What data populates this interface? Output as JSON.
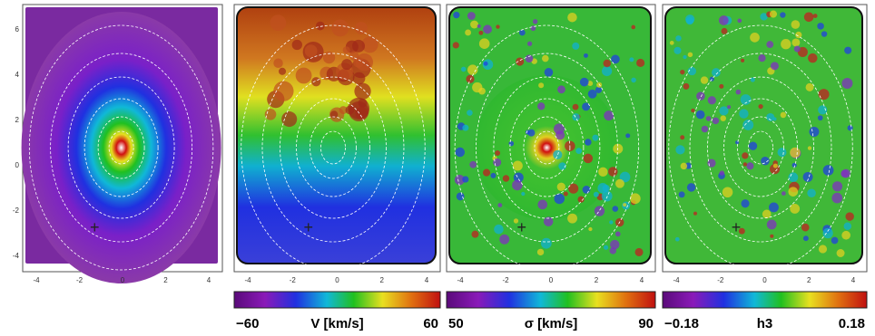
{
  "panels": [
    {
      "x_ticks": [
        "-4",
        "-2",
        "0",
        "2",
        "4"
      ],
      "y_ticks": [
        "6",
        "4",
        "2",
        "0",
        "-2",
        "-4"
      ]
    },
    {
      "x_ticks": [
        "-4",
        "-2",
        "0",
        "2",
        "4"
      ],
      "colorbar": {
        "min": "−60",
        "label": "V [km/s]",
        "max": "60"
      }
    },
    {
      "x_ticks": [
        "-4",
        "-2",
        "0",
        "2",
        "4"
      ],
      "colorbar": {
        "min": "50",
        "label": "σ [km/s]",
        "max": "90"
      }
    },
    {
      "x_ticks": [
        "-4",
        "-2",
        "0",
        "2",
        "4"
      ],
      "colorbar": {
        "min": "−0.18",
        "label": "h3",
        "max": "0.18"
      }
    }
  ]
}
